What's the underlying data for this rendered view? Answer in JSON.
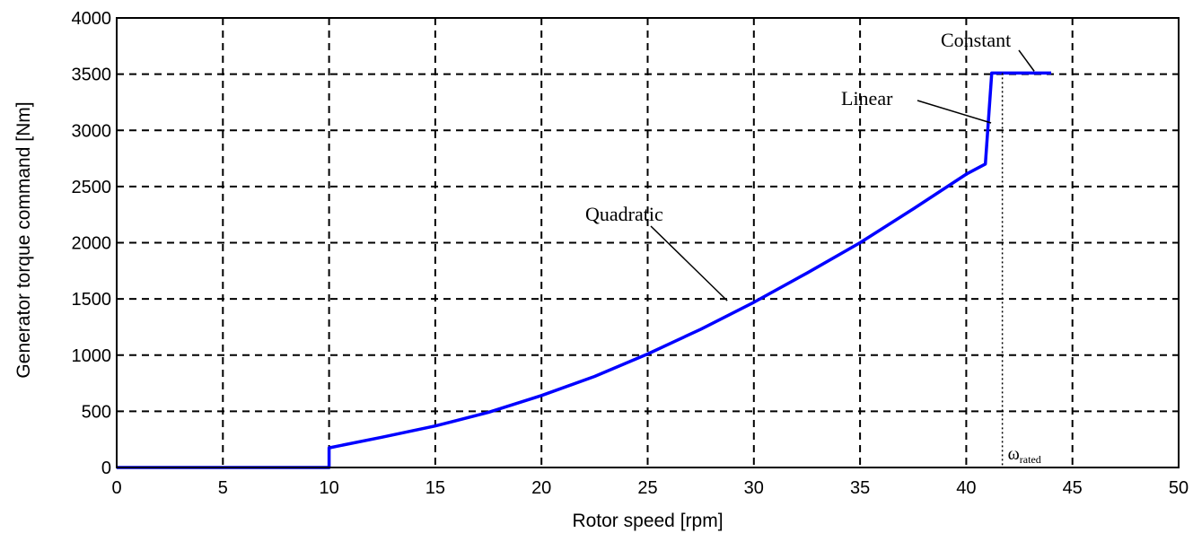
{
  "chart_data": {
    "type": "line",
    "xlabel": "Rotor speed [rpm]",
    "ylabel": "Generator torque command [Nm]",
    "xlim": [
      0,
      50
    ],
    "ylim": [
      0,
      4000
    ],
    "x_ticks": [
      0,
      5,
      10,
      15,
      20,
      25,
      30,
      35,
      40,
      45,
      50
    ],
    "y_ticks": [
      0,
      500,
      1000,
      1500,
      2000,
      2500,
      3000,
      3500,
      4000
    ],
    "grid": true,
    "grid_style": "dashed",
    "series": [
      {
        "color": "#0000ff",
        "x": [
          0,
          10,
          10,
          12.5,
          15,
          17.5,
          20,
          22.5,
          25,
          27.5,
          30,
          32.5,
          35,
          37.5,
          40,
          40.9,
          41.2,
          44
        ],
        "values": [
          0,
          0,
          175,
          270,
          370,
          490,
          640,
          810,
          1010,
          1230,
          1470,
          1730,
          2000,
          2300,
          2610,
          2700,
          3510,
          3510
        ]
      }
    ],
    "annotations": [
      {
        "text": "Quadratic",
        "x": 29,
        "y": 1420
      },
      {
        "text": "Linear",
        "x": 41.0,
        "y": 3050
      },
      {
        "text": "Constant",
        "x": 43.2,
        "y": 3510
      }
    ],
    "marker_line": {
      "x": 41.7
    },
    "marker_label": {
      "symbol": "ω",
      "subscript": "rated"
    }
  }
}
